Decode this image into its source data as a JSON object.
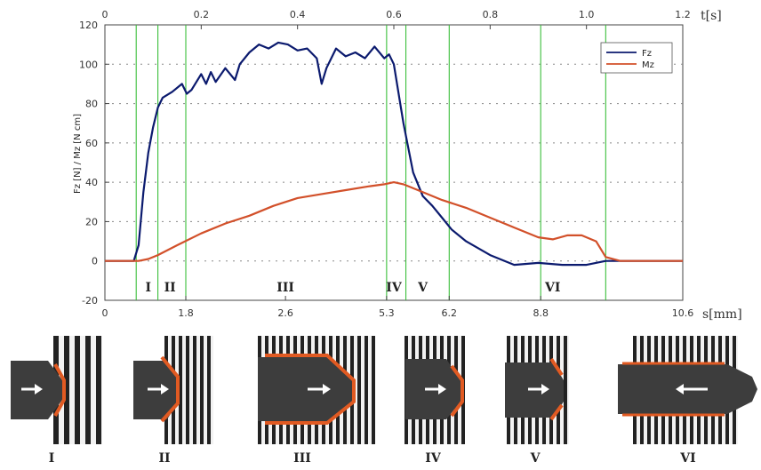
{
  "chart_data": {
    "type": "line",
    "ylabel": "Fz [N]  / Mz [N cm]",
    "ylim": [
      -20,
      120
    ],
    "yticks": [
      "120",
      "100",
      "80",
      "60",
      "40",
      "20",
      "0",
      "-20"
    ],
    "ytick_values": [
      120,
      100,
      80,
      60,
      40,
      20,
      0,
      -20
    ],
    "top_axis": {
      "unit": "t[s]",
      "lim": [
        0,
        1.2
      ],
      "ticks": [
        "0",
        "0.2",
        "0.4",
        "0.6",
        "0.8",
        "1.0",
        "1.2"
      ],
      "tick_values": [
        0,
        0.2,
        0.4,
        0.6,
        0.8,
        1.0,
        1.2
      ]
    },
    "bottom_axis": {
      "unit": "s[mm]",
      "ticks": [
        "0",
        "1.8",
        "2.6",
        "5.3",
        "6.2",
        "8.8",
        "10.6"
      ],
      "tick_t": [
        0,
        0.168,
        0.375,
        0.585,
        0.715,
        0.905,
        1.2
      ]
    },
    "phase_lines_t": [
      0.065,
      0.11,
      0.168,
      0.585,
      0.625,
      0.715,
      0.905,
      1.04
    ],
    "phase_labels": [
      {
        "label": "I",
        "t": 0.09
      },
      {
        "label": "II",
        "t": 0.135
      },
      {
        "label": "III",
        "t": 0.375
      },
      {
        "label": "IV",
        "t": 0.6
      },
      {
        "label": "V",
        "t": 0.66
      },
      {
        "label": "VI",
        "t": 0.93
      }
    ],
    "legend": {
      "position": "top-right"
    },
    "grid": true,
    "series": [
      {
        "name": "Fz",
        "color": "#0b1a6e",
        "t": [
          0,
          0.06,
          0.07,
          0.08,
          0.09,
          0.1,
          0.11,
          0.12,
          0.14,
          0.16,
          0.17,
          0.18,
          0.2,
          0.21,
          0.22,
          0.23,
          0.25,
          0.27,
          0.28,
          0.3,
          0.32,
          0.34,
          0.36,
          0.38,
          0.4,
          0.42,
          0.44,
          0.45,
          0.46,
          0.47,
          0.48,
          0.5,
          0.52,
          0.54,
          0.56,
          0.58,
          0.59,
          0.6,
          0.62,
          0.64,
          0.66,
          0.68,
          0.7,
          0.72,
          0.75,
          0.8,
          0.85,
          0.9,
          0.95,
          1.0,
          1.04,
          1.08,
          1.2
        ],
        "values": [
          0,
          0,
          8,
          35,
          55,
          68,
          78,
          83,
          86,
          90,
          85,
          87,
          95,
          90,
          96,
          91,
          98,
          92,
          100,
          106,
          110,
          108,
          111,
          110,
          107,
          108,
          103,
          90,
          98,
          103,
          108,
          104,
          106,
          103,
          109,
          103,
          105,
          100,
          70,
          45,
          33,
          28,
          22,
          16,
          10,
          3,
          -2,
          -1,
          -2,
          -2,
          0,
          0,
          0
        ]
      },
      {
        "name": "Mz",
        "color": "#d2502a",
        "t": [
          0,
          0.07,
          0.09,
          0.11,
          0.15,
          0.2,
          0.25,
          0.3,
          0.35,
          0.4,
          0.45,
          0.5,
          0.55,
          0.58,
          0.6,
          0.62,
          0.65,
          0.7,
          0.75,
          0.8,
          0.85,
          0.9,
          0.93,
          0.96,
          0.99,
          1.02,
          1.04,
          1.07,
          1.2
        ],
        "values": [
          0,
          0,
          1,
          3,
          8,
          14,
          19,
          23,
          28,
          32,
          34,
          36,
          38,
          39,
          40,
          39,
          36,
          31,
          27,
          22,
          17,
          12,
          11,
          13,
          13,
          10,
          2,
          0,
          0
        ]
      }
    ]
  },
  "phase_diagrams": {
    "labels": [
      "I",
      "II",
      "III",
      "IV",
      "V",
      "VI"
    ]
  }
}
